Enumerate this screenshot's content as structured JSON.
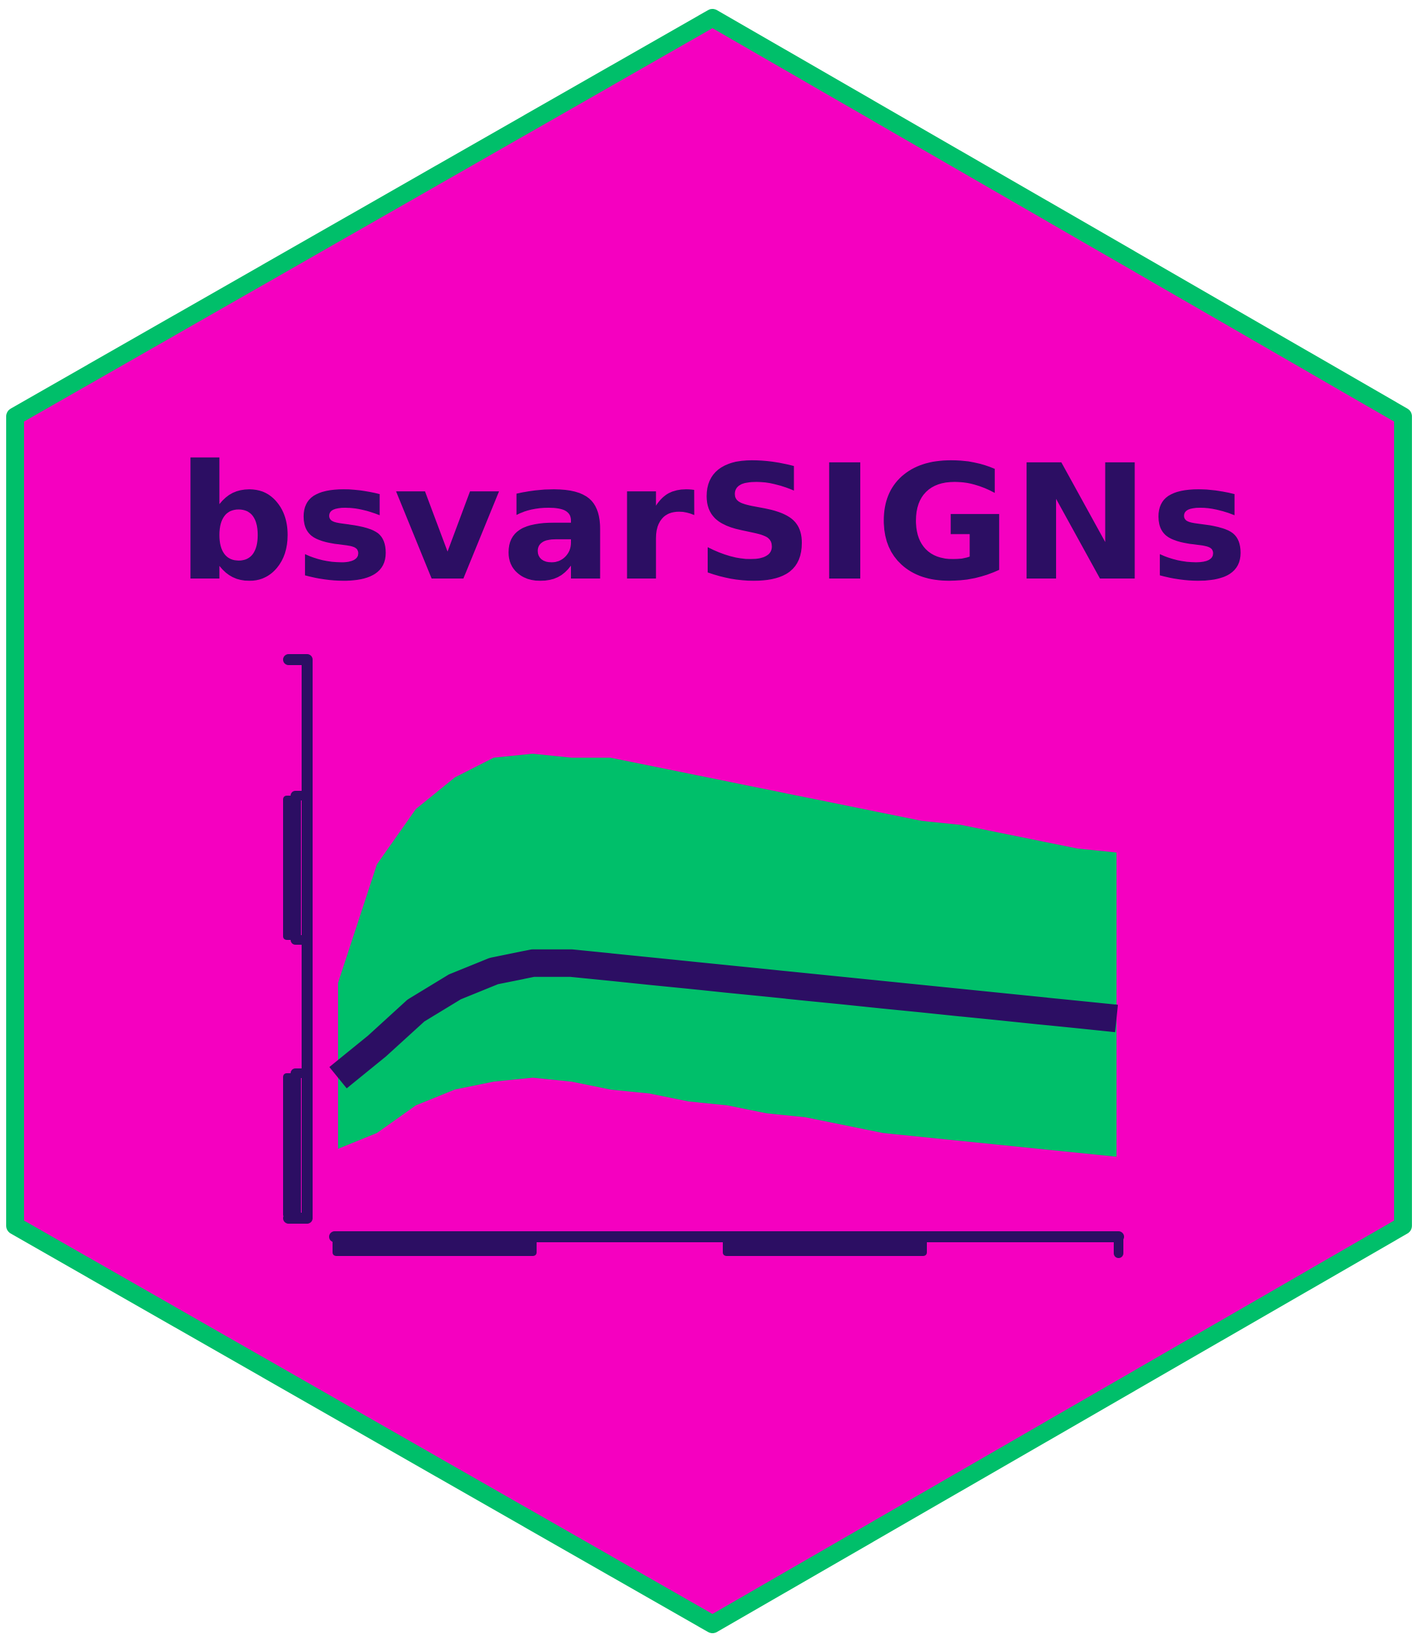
{
  "logo": {
    "title": "bsvarSIGNs",
    "colors": {
      "background": "#ffffff",
      "hex_fill": "#f500c0",
      "hex_border": "#00bf6a",
      "band": "#00bf6a",
      "median_line": "#2c0e63",
      "axis": "#2c0e63",
      "title_text": "#2c0e63"
    }
  },
  "chart_data": {
    "type": "area",
    "x": [
      0,
      1,
      2,
      3,
      4,
      5,
      6,
      7,
      8,
      9,
      10,
      11,
      12,
      13,
      14,
      15,
      16,
      17,
      18,
      19,
      20
    ],
    "series": [
      {
        "role": "upper",
        "values": [
          0.42,
          0.72,
          0.86,
          0.94,
          0.99,
          1.0,
          0.99,
          0.99,
          0.97,
          0.95,
          0.93,
          0.91,
          0.89,
          0.87,
          0.85,
          0.83,
          0.82,
          0.8,
          0.78,
          0.76,
          0.75
        ]
      },
      {
        "role": "median",
        "values": [
          0.18,
          0.26,
          0.35,
          0.41,
          0.45,
          0.47,
          0.47,
          0.46,
          0.45,
          0.44,
          0.43,
          0.42,
          0.41,
          0.4,
          0.39,
          0.38,
          0.37,
          0.36,
          0.35,
          0.34,
          0.33
        ]
      },
      {
        "role": "lower",
        "values": [
          0.0,
          0.04,
          0.11,
          0.15,
          0.17,
          0.18,
          0.17,
          0.15,
          0.14,
          0.12,
          0.11,
          0.09,
          0.08,
          0.06,
          0.04,
          0.03,
          0.02,
          0.01,
          0.0,
          -0.01,
          -0.02
        ]
      }
    ],
    "grid": false,
    "legend": "none"
  }
}
